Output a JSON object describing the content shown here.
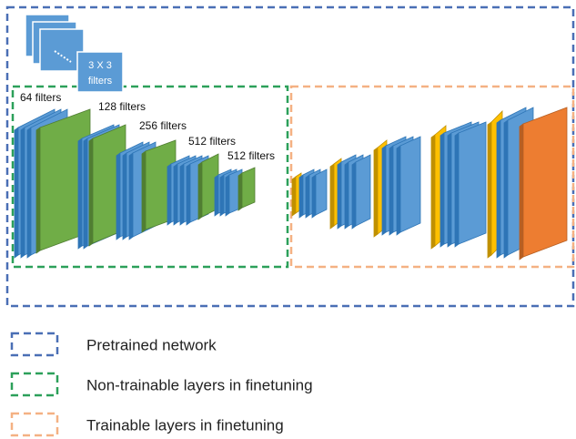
{
  "filter_box": {
    "label_lines": [
      "3 X 3",
      "filters"
    ]
  },
  "encoder_labels": [
    "64 filters",
    "128 filters",
    "256 filters",
    "512 filters",
    "512 filters"
  ],
  "legend": [
    {
      "label": "Pretrained network"
    },
    {
      "label": "Non-trainable layers in finetuning"
    },
    {
      "label": "Trainable layers in finetuning"
    }
  ]
}
